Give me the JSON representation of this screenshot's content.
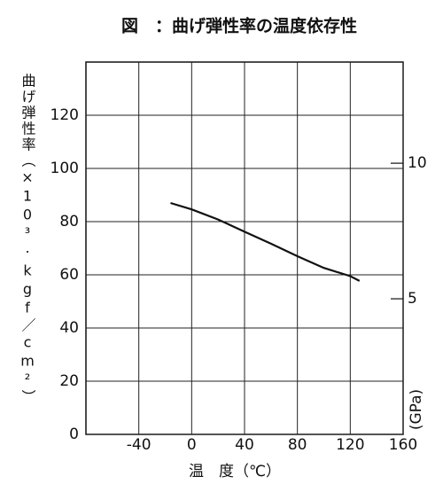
{
  "chart_data": {
    "type": "line",
    "title": "図　：曲げ弾性率の温度依存性",
    "x_label": "温　度（℃）",
    "y_label": "曲げ弾性率（×10³·kgf／cm²）",
    "y2_label": "(GPa)",
    "x": [
      -16,
      0,
      20,
      40,
      60,
      80,
      100,
      120,
      127
    ],
    "values": [
      87,
      84.6,
      80.8,
      76.2,
      71.7,
      67,
      62.6,
      59.5,
      57.7
    ],
    "color": "#111111",
    "xlim": [
      -80,
      160
    ],
    "xticks": [
      -40,
      0,
      40,
      80,
      120,
      160
    ],
    "ylim": [
      0,
      140
    ],
    "yticks": [
      0,
      20,
      40,
      60,
      80,
      100,
      120
    ],
    "y2lim": [
      0,
      13.73
    ],
    "y2ticks": [
      5,
      10
    ],
    "grid": true
  }
}
